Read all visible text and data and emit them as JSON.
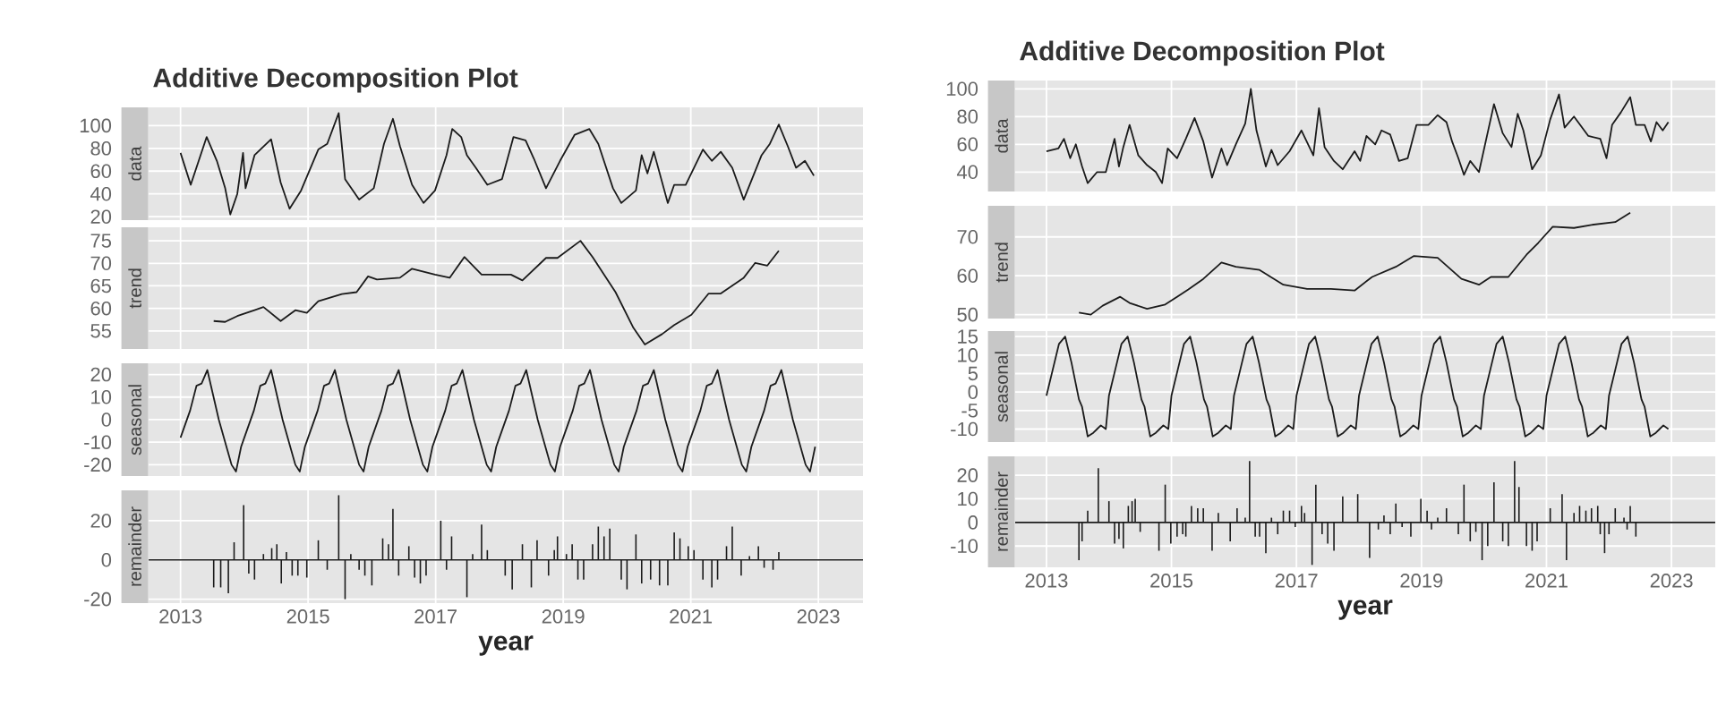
{
  "chart_data": [
    {
      "type": "line",
      "title": "Additive Decomposition Plot",
      "ylabel": "data",
      "color": "#1a1a1a",
      "grid": true,
      "tick_labels": "y",
      "xlim": [
        2012.5,
        2023.7
      ],
      "xticks": [
        2013,
        2015,
        2017,
        2019,
        2021,
        2023
      ],
      "ylim": [
        17,
        116
      ],
      "yticks": [
        20,
        40,
        60,
        80,
        100
      ],
      "x": [
        2013.0,
        2013.16,
        2013.41,
        2013.57,
        2013.7,
        2013.78,
        2013.89,
        2013.98,
        2014.02,
        2014.16,
        2014.42,
        2014.57,
        2014.71,
        2014.89,
        2015.16,
        2015.3,
        2015.48,
        2015.58,
        2015.8,
        2016.03,
        2016.19,
        2016.33,
        2016.44,
        2016.63,
        2016.81,
        2016.99,
        2017.17,
        2017.26,
        2017.4,
        2017.49,
        2017.63,
        2017.81,
        2018.04,
        2018.22,
        2018.41,
        2018.54,
        2018.73,
        2018.95,
        2019.18,
        2019.41,
        2019.55,
        2019.78,
        2019.91,
        2020.14,
        2020.23,
        2020.32,
        2020.42,
        2020.64,
        2020.74,
        2020.92,
        2021.19,
        2021.33,
        2021.47,
        2021.65,
        2021.83,
        2022.11,
        2022.24,
        2022.38,
        2022.52,
        2022.65,
        2022.79,
        2022.93
      ],
      "values": [
        76,
        48,
        90,
        69,
        45,
        22,
        40,
        76,
        45,
        74,
        88,
        50,
        27,
        43,
        79,
        84,
        111,
        53,
        35,
        45,
        84,
        106,
        82,
        48,
        32,
        43,
        74,
        97,
        90,
        74,
        63,
        48,
        53,
        90,
        87,
        71,
        45,
        69,
        92,
        97,
        84,
        45,
        32,
        43,
        74,
        58,
        77,
        32,
        48,
        48,
        79,
        69,
        77,
        63,
        35,
        74,
        84,
        101,
        82,
        63,
        69,
        56
      ]
    },
    {
      "type": "line",
      "ylabel": "trend",
      "color": "#1a1a1a",
      "grid": true,
      "tick_labels": "y",
      "xlim": [
        2012.5,
        2023.7
      ],
      "xticks": [
        2013,
        2015,
        2017,
        2019,
        2021,
        2023
      ],
      "ylim": [
        51,
        78
      ],
      "yticks": [
        55,
        60,
        65,
        70,
        75
      ],
      "x": [
        2013.52,
        2013.7,
        2013.89,
        2014.16,
        2014.3,
        2014.57,
        2014.8,
        2014.98,
        2015.16,
        2015.53,
        2015.76,
        2015.94,
        2016.08,
        2016.44,
        2016.63,
        2016.99,
        2017.22,
        2017.45,
        2017.72,
        2018.18,
        2018.36,
        2018.73,
        2018.91,
        2019.27,
        2019.46,
        2019.82,
        2020.1,
        2020.28,
        2020.55,
        2020.74,
        2021.01,
        2021.28,
        2021.47,
        2021.83,
        2022.01,
        2022.2,
        2022.38
      ],
      "values": [
        57.2,
        57,
        58.3,
        59.6,
        60.3,
        57.2,
        59.6,
        59,
        61.6,
        63.2,
        63.6,
        67.1,
        66.4,
        66.8,
        68.8,
        67.5,
        66.8,
        71.4,
        67.5,
        67.5,
        66.2,
        71.2,
        71.2,
        75,
        71.4,
        63.6,
        55.7,
        52,
        54.3,
        56.3,
        58.6,
        63.3,
        63.3,
        66.8,
        70.1,
        69.5,
        72.8
      ]
    },
    {
      "type": "line",
      "ylabel": "seasonal",
      "color": "#1a1a1a",
      "grid": true,
      "tick_labels": "y",
      "xlim": [
        2012.5,
        2023.7
      ],
      "xticks": [
        2013,
        2015,
        2017,
        2019,
        2021,
        2023
      ],
      "ylim": [
        -25,
        25
      ],
      "yticks": [
        -20,
        -10,
        0,
        10,
        20
      ],
      "x": [
        2013,
        2013.15,
        2013.25,
        2013.33,
        2013.42,
        2013.6,
        2013.8,
        2013.87,
        2013.95,
        2014,
        2014.15,
        2014.25,
        2014.33,
        2014.42,
        2014.6,
        2014.8,
        2014.87,
        2014.95,
        2015,
        2015.15,
        2015.25,
        2015.33,
        2015.42,
        2015.6,
        2015.8,
        2015.87,
        2015.95,
        2016,
        2016.15,
        2016.25,
        2016.33,
        2016.42,
        2016.6,
        2016.8,
        2016.87,
        2016.95,
        2017,
        2017.15,
        2017.25,
        2017.33,
        2017.42,
        2017.6,
        2017.8,
        2017.87,
        2017.95,
        2018,
        2018.15,
        2018.25,
        2018.33,
        2018.42,
        2018.6,
        2018.8,
        2018.87,
        2018.95,
        2019,
        2019.15,
        2019.25,
        2019.33,
        2019.42,
        2019.6,
        2019.8,
        2019.87,
        2019.95,
        2020,
        2020.15,
        2020.25,
        2020.33,
        2020.42,
        2020.6,
        2020.8,
        2020.87,
        2020.95,
        2021,
        2021.15,
        2021.25,
        2021.33,
        2021.42,
        2021.6,
        2021.8,
        2021.87,
        2021.95,
        2022,
        2022.15,
        2022.25,
        2022.33,
        2022.42,
        2022.6,
        2022.8,
        2022.87,
        2022.95
      ],
      "values": [
        -8,
        4,
        15,
        16,
        22,
        0,
        -20,
        -23,
        -12,
        -8,
        4,
        15,
        16,
        22,
        0,
        -20,
        -23,
        -12,
        -8,
        4,
        15,
        16,
        22,
        0,
        -20,
        -23,
        -12,
        -8,
        4,
        15,
        16,
        22,
        0,
        -20,
        -23,
        -12,
        -8,
        4,
        15,
        16,
        22,
        0,
        -20,
        -23,
        -12,
        -8,
        4,
        15,
        16,
        22,
        0,
        -20,
        -23,
        -12,
        -8,
        4,
        15,
        16,
        22,
        0,
        -20,
        -23,
        -12,
        -8,
        4,
        15,
        16,
        22,
        0,
        -20,
        -23,
        -12,
        -8,
        4,
        15,
        16,
        22,
        0,
        -20,
        -23,
        -12,
        -8,
        4,
        15,
        16,
        22,
        0,
        -20,
        -23,
        -12
      ]
    },
    {
      "type": "bar",
      "ylabel": "remainder",
      "xlabel": "year",
      "color": "#1a1a1a",
      "grid": true,
      "xlim": [
        2012.5,
        2023.7
      ],
      "xticks": [
        2013,
        2015,
        2017,
        2019,
        2021,
        2023
      ],
      "ylim": [
        -22,
        35.5
      ],
      "yticks": [
        -20,
        0,
        20
      ],
      "ref_lines": [
        {
          "axis": "y",
          "value": 0,
          "color": "#1a1a1a"
        }
      ],
      "x": [
        2013.52,
        2013.63,
        2013.75,
        2013.84,
        2013.99,
        2014.07,
        2014.16,
        2014.3,
        2014.43,
        2014.51,
        2014.58,
        2014.66,
        2014.75,
        2014.84,
        2014.98,
        2015.16,
        2015.3,
        2015.48,
        2015.58,
        2015.67,
        2015.8,
        2015.89,
        2016.0,
        2016.17,
        2016.26,
        2016.33,
        2016.42,
        2016.58,
        2016.67,
        2016.76,
        2016.85,
        2017.08,
        2017.17,
        2017.25,
        2017.49,
        2017.58,
        2017.72,
        2017.81,
        2018.09,
        2018.2,
        2018.36,
        2018.5,
        2018.59,
        2018.77,
        2018.86,
        2018.91,
        2019.05,
        2019.14,
        2019.23,
        2019.32,
        2019.46,
        2019.55,
        2019.64,
        2019.73,
        2019.91,
        2020.0,
        2020.14,
        2020.23,
        2020.37,
        2020.51,
        2020.64,
        2020.74,
        2020.83,
        2020.96,
        2021.05,
        2021.19,
        2021.33,
        2021.42,
        2021.56,
        2021.65,
        2021.79,
        2021.92,
        2022.06,
        2022.15,
        2022.29,
        2022.38
      ],
      "values": [
        -14,
        -14,
        -17,
        9,
        28,
        -7,
        -10,
        3,
        6,
        8,
        -12,
        4,
        -8,
        -8,
        -9,
        10,
        -5,
        33,
        -20,
        3,
        -5,
        -8,
        -13,
        11,
        8,
        26,
        -8,
        7,
        -9,
        -12,
        -8,
        20,
        -5,
        12,
        -19,
        3,
        18,
        5,
        -8,
        -15,
        8,
        -14,
        10,
        -8,
        5,
        12,
        3,
        8,
        -10,
        -10,
        8,
        17,
        12,
        16,
        -10,
        -15,
        13,
        -12,
        -10,
        -13,
        -13,
        14,
        11,
        7,
        5,
        -10,
        -14,
        -10,
        7,
        17,
        -8,
        2,
        7,
        -4,
        -5,
        4
      ]
    },
    {
      "type": "line",
      "title": "Additive Decomposition Plot",
      "ylabel": "data",
      "color": "#1a1a1a",
      "grid": true,
      "tick_labels": "y",
      "xlim": [
        2012.5,
        2023.7
      ],
      "xticks": [
        2013,
        2015,
        2017,
        2019,
        2021,
        2023
      ],
      "ylim": [
        26,
        106
      ],
      "yticks": [
        40,
        60,
        80,
        100
      ],
      "x": [
        2013.0,
        2013.19,
        2013.28,
        2013.38,
        2013.47,
        2013.57,
        2013.66,
        2013.81,
        2013.95,
        2014.09,
        2014.16,
        2014.23,
        2014.33,
        2014.47,
        2014.61,
        2014.75,
        2014.85,
        2014.94,
        2015.09,
        2015.23,
        2015.37,
        2015.51,
        2015.65,
        2015.8,
        2015.89,
        2016.03,
        2016.18,
        2016.27,
        2016.36,
        2016.51,
        2016.6,
        2016.7,
        2016.89,
        2017.08,
        2017.27,
        2017.36,
        2017.45,
        2017.6,
        2017.74,
        2017.93,
        2018.02,
        2018.12,
        2018.26,
        2018.36,
        2018.5,
        2018.64,
        2018.78,
        2018.92,
        2019.11,
        2019.26,
        2019.4,
        2019.49,
        2019.59,
        2019.68,
        2019.78,
        2019.92,
        2020.16,
        2020.3,
        2020.44,
        2020.54,
        2020.63,
        2020.77,
        2020.91,
        2021.06,
        2021.2,
        2021.29,
        2021.44,
        2021.67,
        2021.86,
        2021.96,
        2022.05,
        2022.19,
        2022.34,
        2022.43,
        2022.57,
        2022.67,
        2022.76,
        2022.86,
        2022.95
      ],
      "values": [
        55,
        57,
        64,
        50,
        60,
        44,
        32,
        40,
        40,
        64,
        44,
        58,
        74,
        52,
        45,
        40,
        32,
        57,
        50,
        64,
        79,
        62,
        36,
        57,
        45,
        60,
        75,
        100,
        70,
        44,
        56,
        45,
        55,
        70,
        52,
        86,
        58,
        48,
        42,
        55,
        48,
        66,
        60,
        70,
        67,
        48,
        50,
        74,
        74,
        81,
        76,
        62,
        50,
        38,
        48,
        40,
        89,
        68,
        58,
        82,
        70,
        42,
        52,
        78,
        96,
        72,
        80,
        66,
        64,
        50,
        74,
        83,
        94,
        74,
        74,
        62,
        76,
        70,
        76
      ]
    },
    {
      "type": "line",
      "ylabel": "trend",
      "color": "#1a1a1a",
      "grid": true,
      "tick_labels": "y",
      "xlim": [
        2012.5,
        2023.7
      ],
      "xticks": [
        2013,
        2015,
        2017,
        2019,
        2021,
        2023
      ],
      "ylim": [
        49,
        78
      ],
      "yticks": [
        50,
        60,
        70
      ],
      "x": [
        2013.52,
        2013.71,
        2013.9,
        2014.18,
        2014.33,
        2014.61,
        2014.9,
        2015.09,
        2015.27,
        2015.51,
        2015.8,
        2016.03,
        2016.41,
        2016.79,
        2017.17,
        2017.55,
        2017.93,
        2018.21,
        2018.59,
        2018.88,
        2019.26,
        2019.64,
        2019.92,
        2020.11,
        2020.39,
        2020.68,
        2020.87,
        2021.1,
        2021.44,
        2021.72,
        2022.1,
        2022.34
      ],
      "values": [
        50.5,
        50,
        52.3,
        54.6,
        53,
        51.5,
        52.6,
        54.6,
        56.5,
        59.2,
        63.4,
        62.3,
        61.5,
        57.7,
        56.6,
        56.6,
        56.2,
        59.7,
        62.3,
        65.1,
        64.6,
        59.2,
        57.7,
        59.7,
        59.7,
        65.4,
        68.5,
        72.6,
        72.3,
        73.1,
        73.8,
        76.2
      ]
    },
    {
      "type": "line",
      "ylabel": "seasonal",
      "color": "#1a1a1a",
      "grid": true,
      "tick_labels": "y",
      "xlim": [
        2012.5,
        2023.7
      ],
      "xticks": [
        2013,
        2015,
        2017,
        2019,
        2021,
        2023
      ],
      "ylim": [
        -13.5,
        16.5
      ],
      "yticks": [
        -10,
        -5,
        0,
        5,
        10,
        15
      ],
      "x": [
        2013,
        2013.1,
        2013.2,
        2013.3,
        2013.4,
        2013.52,
        2013.57,
        2013.66,
        2013.75,
        2013.81,
        2013.87,
        2013.95,
        2014,
        2014.1,
        2014.2,
        2014.3,
        2014.4,
        2014.52,
        2014.57,
        2014.66,
        2014.75,
        2014.81,
        2014.87,
        2014.95,
        2015,
        2015.1,
        2015.2,
        2015.3,
        2015.4,
        2015.52,
        2015.57,
        2015.66,
        2015.75,
        2015.81,
        2015.87,
        2015.95,
        2016,
        2016.1,
        2016.2,
        2016.3,
        2016.4,
        2016.52,
        2016.57,
        2016.66,
        2016.75,
        2016.81,
        2016.87,
        2016.95,
        2017,
        2017.1,
        2017.2,
        2017.3,
        2017.4,
        2017.52,
        2017.57,
        2017.66,
        2017.75,
        2017.81,
        2017.87,
        2017.95,
        2018,
        2018.1,
        2018.2,
        2018.3,
        2018.4,
        2018.52,
        2018.57,
        2018.66,
        2018.75,
        2018.81,
        2018.87,
        2018.95,
        2019,
        2019.1,
        2019.2,
        2019.3,
        2019.4,
        2019.52,
        2019.57,
        2019.66,
        2019.75,
        2019.81,
        2019.87,
        2019.95,
        2020,
        2020.1,
        2020.2,
        2020.3,
        2020.4,
        2020.52,
        2020.57,
        2020.66,
        2020.75,
        2020.81,
        2020.87,
        2020.95,
        2021,
        2021.1,
        2021.2,
        2021.3,
        2021.4,
        2021.52,
        2021.57,
        2021.66,
        2021.75,
        2021.81,
        2021.87,
        2021.95,
        2022,
        2022.1,
        2022.2,
        2022.3,
        2022.4,
        2022.52,
        2022.57,
        2022.66,
        2022.75,
        2022.81,
        2022.87,
        2022.95
      ],
      "values": [
        -1,
        6,
        13,
        15,
        8,
        -2,
        -4,
        -12,
        -11,
        -10,
        -9,
        -10,
        -1,
        6,
        13,
        15,
        8,
        -2,
        -4,
        -12,
        -11,
        -10,
        -9,
        -10,
        -1,
        6,
        13,
        15,
        8,
        -2,
        -4,
        -12,
        -11,
        -10,
        -9,
        -10,
        -1,
        6,
        13,
        15,
        8,
        -2,
        -4,
        -12,
        -11,
        -10,
        -9,
        -10,
        -1,
        6,
        13,
        15,
        8,
        -2,
        -4,
        -12,
        -11,
        -10,
        -9,
        -10,
        -1,
        6,
        13,
        15,
        8,
        -2,
        -4,
        -12,
        -11,
        -10,
        -9,
        -10,
        -1,
        6,
        13,
        15,
        8,
        -2,
        -4,
        -12,
        -11,
        -10,
        -9,
        -10,
        -1,
        6,
        13,
        15,
        8,
        -2,
        -4,
        -12,
        -11,
        -10,
        -9,
        -10,
        -1,
        6,
        13,
        15,
        8,
        -2,
        -4,
        -12,
        -11,
        -10,
        -9,
        -10,
        -1,
        6,
        13,
        15,
        8,
        -2,
        -4,
        -12,
        -11,
        -10,
        -9,
        -10
      ]
    },
    {
      "type": "bar",
      "ylabel": "remainder",
      "xlabel": "year",
      "color": "#1a1a1a",
      "grid": true,
      "xlim": [
        2012.5,
        2023.7
      ],
      "xticks": [
        2013,
        2015,
        2017,
        2019,
        2021,
        2023
      ],
      "ylim": [
        -19,
        28
      ],
      "yticks": [
        -10,
        0,
        10,
        20
      ],
      "ref_lines": [
        {
          "axis": "y",
          "value": 0,
          "color": "#1a1a1a"
        }
      ],
      "x": [
        2013.52,
        2013.57,
        2013.66,
        2013.83,
        2014.0,
        2014.09,
        2014.16,
        2014.23,
        2014.31,
        2014.37,
        2014.42,
        2014.5,
        2014.8,
        2014.9,
        2014.99,
        2015.09,
        2015.18,
        2015.23,
        2015.32,
        2015.42,
        2015.51,
        2015.65,
        2015.75,
        2015.94,
        2016.05,
        2016.18,
        2016.25,
        2016.34,
        2016.41,
        2016.51,
        2016.6,
        2016.7,
        2016.79,
        2016.89,
        2016.98,
        2017.08,
        2017.13,
        2017.25,
        2017.31,
        2017.41,
        2017.5,
        2017.6,
        2017.74,
        2017.88,
        2017.98,
        2018.17,
        2018.31,
        2018.4,
        2018.5,
        2018.59,
        2018.69,
        2018.83,
        2018.99,
        2019.09,
        2019.16,
        2019.26,
        2019.4,
        2019.59,
        2019.68,
        2019.78,
        2019.87,
        2019.97,
        2020.06,
        2020.16,
        2020.3,
        2020.39,
        2020.49,
        2020.56,
        2020.68,
        2020.77,
        2020.85,
        2021.06,
        2021.25,
        2021.32,
        2021.44,
        2021.53,
        2021.63,
        2021.72,
        2021.82,
        2021.86,
        2021.93,
        2022.0,
        2022.1,
        2022.24,
        2022.29,
        2022.34,
        2022.43
      ],
      "values": [
        -16,
        -8,
        5,
        23,
        9,
        -9,
        -7,
        -11,
        7,
        9,
        10,
        -4,
        -12,
        16,
        -9,
        -6,
        -5,
        -6,
        7,
        6,
        6,
        -12,
        4,
        -8,
        6,
        2,
        26,
        -6,
        -6,
        -13,
        2,
        -5,
        5,
        5,
        -2,
        7,
        4,
        -18,
        16,
        -5,
        -9,
        -12,
        11,
        null,
        12,
        -15,
        -3,
        3,
        -5,
        8,
        -2,
        -6,
        10,
        5,
        -3,
        2,
        6,
        -5,
        16,
        -8,
        -4,
        -16,
        -10,
        17,
        -8,
        -10,
        26,
        15,
        -10,
        -12,
        -8,
        6,
        12,
        -16,
        4,
        7,
        5,
        6,
        7,
        -5,
        -13,
        -5,
        6,
        2,
        -3,
        7,
        -6
      ]
    }
  ]
}
